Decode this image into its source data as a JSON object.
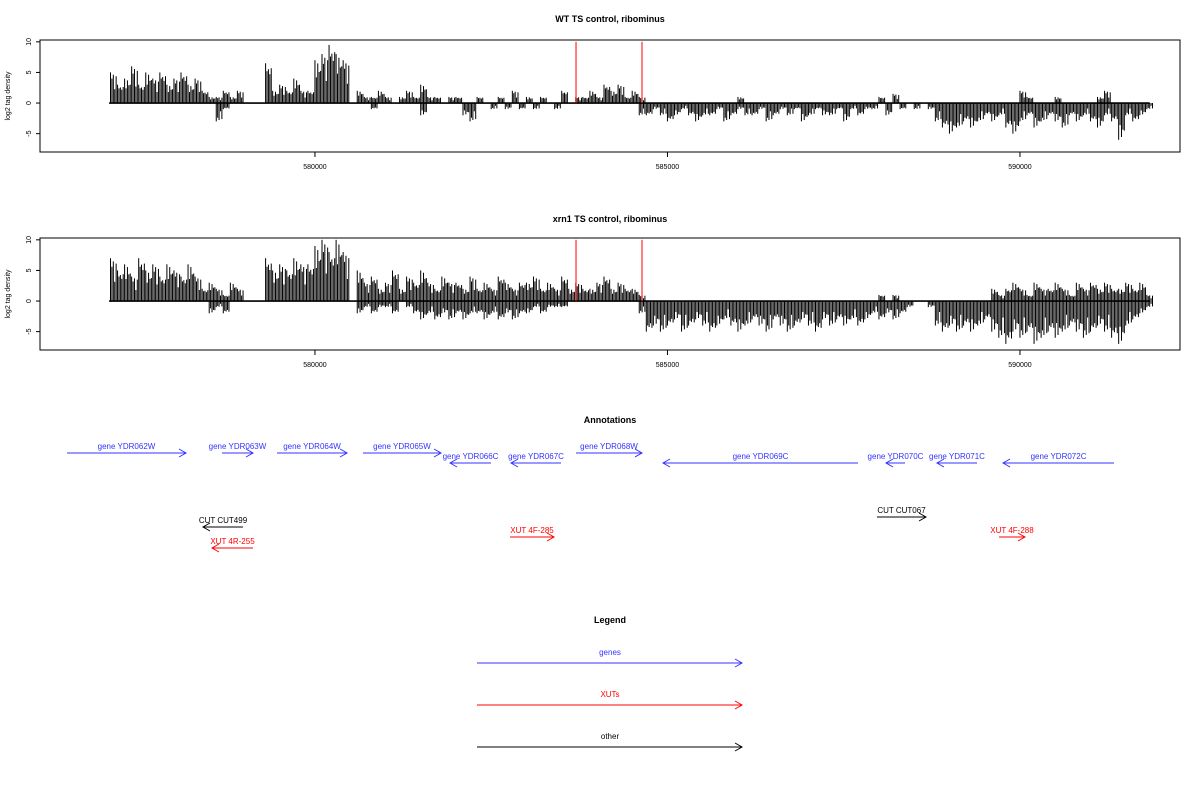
{
  "chart_data": {
    "type": "bar",
    "x_ticks": [
      580000,
      585000,
      590000
    ],
    "y_ticks": [
      -5,
      0,
      5,
      10
    ],
    "ylabel": "log2 tag density",
    "xlim": [
      576100,
      592270
    ],
    "ylim": [
      -8,
      10.3
    ],
    "bin_start": 577100,
    "bin_step": 100,
    "colors": {
      "bars": "#000000",
      "highlight": "#ff0000",
      "genes": "#3333ff",
      "XUTs": "#ff0000",
      "other": "#000000"
    },
    "highlights": [
      {
        "pos": 583703,
        "value": 10
      },
      {
        "pos": 584639,
        "value": 10
      }
    ],
    "tracks": [
      {
        "title": "WT TS control, ribominus",
        "up": [
          5,
          3,
          4,
          6,
          3,
          5,
          4,
          5,
          3,
          4,
          5,
          3,
          4,
          2,
          1,
          1,
          2,
          1,
          2,
          0,
          0,
          0,
          6.5,
          2,
          3,
          2,
          4,
          2,
          2,
          7,
          8,
          9.5,
          8,
          7,
          0,
          2,
          1,
          1,
          2,
          1,
          0,
          1,
          2,
          1,
          3,
          1,
          1,
          0,
          1,
          1,
          0,
          0,
          1,
          0,
          0,
          1,
          0,
          2,
          0,
          1,
          0,
          1,
          0,
          0,
          2,
          0,
          1,
          1,
          2,
          1,
          3,
          2,
          3,
          1,
          2,
          1,
          0,
          0,
          0,
          0,
          0,
          0,
          0,
          0,
          0,
          0,
          0,
          0,
          0,
          1,
          0,
          0,
          0,
          0,
          0,
          0,
          0,
          0,
          0,
          0,
          0,
          0,
          0,
          0,
          0,
          0,
          0,
          0,
          0,
          1,
          0,
          1.5,
          0,
          0,
          0,
          0,
          0,
          0,
          0,
          0,
          0,
          0,
          0,
          0,
          0,
          0,
          0,
          0,
          0,
          2,
          1,
          0,
          0,
          0,
          1,
          0,
          0,
          0,
          0,
          0,
          1,
          2,
          0,
          0,
          0,
          0,
          0,
          0
        ],
        "down": [
          0,
          0,
          0,
          0,
          0,
          0,
          0,
          0,
          0,
          0,
          0,
          0,
          0,
          0,
          0,
          -3,
          -1,
          0,
          0,
          0,
          0,
          0,
          0,
          0,
          0,
          0,
          0,
          0,
          0,
          0,
          0,
          0,
          0,
          0,
          0,
          0,
          0,
          -1,
          0,
          0,
          0,
          0,
          0,
          0,
          -2,
          0,
          0,
          0,
          0,
          0,
          -2,
          -3,
          0,
          0,
          -1,
          0,
          -1,
          0,
          -1,
          0,
          -1,
          0,
          0,
          -1,
          0,
          0,
          0,
          0,
          0,
          0,
          0,
          0,
          0,
          0,
          0,
          -2,
          -2,
          -1,
          -2,
          -3,
          -2,
          -1,
          -2,
          -3,
          -2,
          -2,
          -1,
          -3,
          -2,
          -1,
          -2,
          -2,
          -1,
          -3,
          -2,
          -1,
          -2,
          -1,
          -3,
          -2,
          -1,
          -2,
          -2,
          -1,
          -3,
          -1,
          -2,
          -1,
          -1,
          0,
          -2,
          0,
          -1,
          0,
          -1,
          0,
          -1,
          -3,
          -4,
          -5,
          -4,
          -3,
          -4,
          -3,
          -2,
          -3,
          -2,
          -4,
          -5,
          -3,
          -2,
          -4,
          -3,
          -2,
          -3,
          -4,
          -2,
          -3,
          -2,
          -3,
          -4,
          -2,
          -3,
          -6,
          -2,
          -3,
          -2,
          -1
        ]
      },
      {
        "title": "xrn1 TS control, ribominus",
        "up": [
          7,
          5,
          6,
          4,
          7,
          5,
          6,
          4,
          6,
          5,
          4,
          6,
          4,
          2,
          3,
          2,
          1,
          3,
          2,
          0,
          0,
          0,
          7,
          5,
          6,
          5,
          7,
          6,
          6,
          9,
          10,
          8,
          10,
          8,
          0,
          5,
          3,
          4,
          2,
          3,
          5,
          2,
          4,
          3,
          5,
          3,
          2,
          4,
          3,
          3,
          2,
          4,
          2,
          3,
          2,
          4,
          3,
          2,
          3,
          3,
          4,
          2,
          3,
          2,
          4,
          2,
          3,
          2,
          2,
          3,
          4,
          2,
          3,
          2,
          2,
          1,
          0,
          0,
          0,
          0,
          0,
          0,
          0,
          0,
          0,
          0,
          0,
          0,
          0,
          0,
          0,
          0,
          0,
          0,
          0,
          0,
          0,
          0,
          0,
          0,
          0,
          0,
          0,
          0,
          0,
          0,
          0,
          0,
          0,
          1,
          0,
          1,
          0,
          0,
          0,
          0,
          0,
          0,
          0,
          0,
          0,
          0,
          0,
          0,
          0,
          2,
          1,
          2,
          3,
          2,
          1,
          3,
          2,
          2,
          3,
          2,
          1,
          3,
          2,
          3,
          2,
          3,
          2,
          2,
          3,
          2,
          3,
          1
        ],
        "down": [
          0,
          0,
          0,
          0,
          0,
          0,
          0,
          0,
          0,
          0,
          0,
          0,
          0,
          0,
          -2,
          -1,
          -2,
          0,
          0,
          0,
          0,
          0,
          0,
          0,
          0,
          0,
          0,
          0,
          0,
          0,
          0,
          0,
          0,
          0,
          0,
          -2,
          -1,
          -2,
          -1,
          -1,
          -2,
          0,
          -1,
          -2,
          -3,
          -2,
          -3,
          -2,
          -3,
          -2,
          -3,
          -2,
          -2,
          -3,
          -2,
          -3,
          -2,
          -3,
          -2,
          -2,
          -1,
          -2,
          -1,
          -1,
          -1,
          0,
          0,
          0,
          0,
          0,
          0,
          0,
          0,
          0,
          0,
          -2,
          -5,
          -4,
          -5,
          -4,
          -3,
          -5,
          -4,
          -3,
          -4,
          -5,
          -4,
          -3,
          -4,
          -5,
          -4,
          -3,
          -4,
          -5,
          -3,
          -4,
          -5,
          -4,
          -3,
          -4,
          -5,
          -3,
          -4,
          -3,
          -4,
          -3,
          -4,
          -3,
          -2,
          -3,
          -2,
          -3,
          -2,
          -1,
          0,
          0,
          -1,
          -4,
          -5,
          -4,
          -5,
          -4,
          -5,
          -4,
          -3,
          -5,
          -6,
          -7,
          -5,
          -6,
          -5,
          -7,
          -6,
          -5,
          -6,
          -5,
          -4,
          -5,
          -6,
          -5,
          -4,
          -5,
          -6,
          -7,
          -4,
          -3,
          -2,
          -1
        ]
      }
    ],
    "annotations_title": "Annotations",
    "annotations": [
      {
        "label": "gene YDR062W",
        "start": 576483,
        "end": 578171,
        "strand": "+",
        "type": "genes",
        "lane": 0
      },
      {
        "label": "gene YDR063W",
        "start": 578681,
        "end": 579121,
        "strand": "+",
        "type": "genes",
        "lane": 0
      },
      {
        "label": "gene YDR064W",
        "start": 579462,
        "end": 580455,
        "strand": "+",
        "type": "genes",
        "lane": 0
      },
      {
        "label": "gene YDR065W",
        "start": 580681,
        "end": 581788,
        "strand": "+",
        "type": "genes",
        "lane": 0
      },
      {
        "label": "gene YDR066C",
        "start": 581916,
        "end": 582497,
        "strand": "-",
        "type": "genes",
        "lane": 1
      },
      {
        "label": "gene YDR067C",
        "start": 582781,
        "end": 583490,
        "strand": "-",
        "type": "genes",
        "lane": 1
      },
      {
        "label": "gene YDR068W",
        "start": 583703,
        "end": 584639,
        "strand": "+",
        "type": "genes",
        "lane": 0
      },
      {
        "label": "gene YDR069C",
        "start": 584937,
        "end": 587703,
        "strand": "-",
        "type": "genes",
        "lane": 1
      },
      {
        "label": "gene YDR070C",
        "start": 588100,
        "end": 588369,
        "strand": "-",
        "type": "genes",
        "lane": 1
      },
      {
        "label": "gene YDR071C",
        "start": 588823,
        "end": 589391,
        "strand": "-",
        "type": "genes",
        "lane": 1
      },
      {
        "label": "gene YDR072C",
        "start": 589760,
        "end": 591334,
        "strand": "-",
        "type": "genes",
        "lane": 1
      },
      {
        "label": "CUT CUT067",
        "start": 587972,
        "end": 588667,
        "strand": "+",
        "type": "other",
        "lane": 2
      },
      {
        "label": "CUT CUT499",
        "start": 578412,
        "end": 578979,
        "strand": "-",
        "type": "other",
        "lane": 3
      },
      {
        "label": "XUT 4F-285",
        "start": 582767,
        "end": 583391,
        "strand": "+",
        "type": "XUTs",
        "lane": 4
      },
      {
        "label": "XUT 4F-288",
        "start": 589703,
        "end": 590071,
        "strand": "+",
        "type": "XUTs",
        "lane": 4
      },
      {
        "label": "XUT 4R-255",
        "start": 578540,
        "end": 579121,
        "strand": "-",
        "type": "XUTs",
        "lane": 5
      }
    ],
    "legend_title": "Legend",
    "legend": [
      {
        "label": "genes",
        "type": "genes"
      },
      {
        "label": "XUTs",
        "type": "XUTs"
      },
      {
        "label": "other",
        "type": "other"
      }
    ]
  }
}
